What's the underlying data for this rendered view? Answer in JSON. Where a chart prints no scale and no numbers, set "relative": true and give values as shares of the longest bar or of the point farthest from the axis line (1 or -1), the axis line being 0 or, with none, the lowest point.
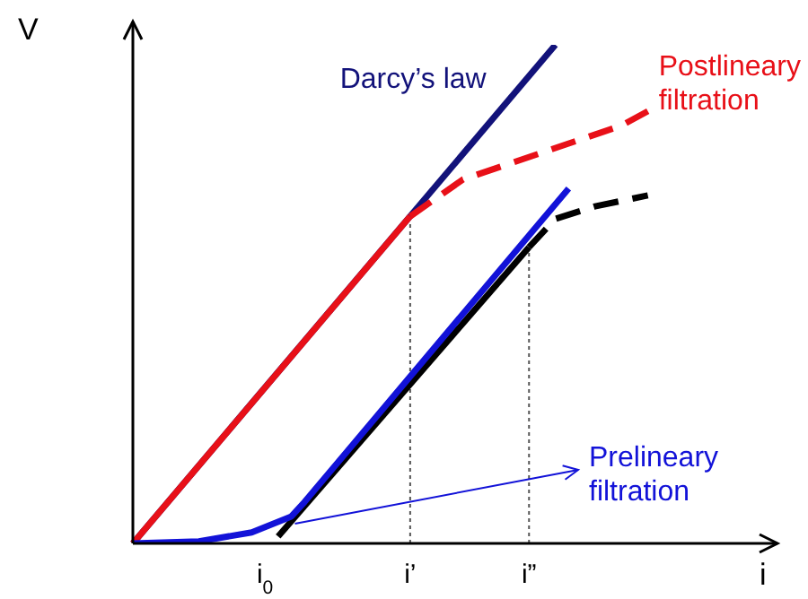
{
  "chart_data": {
    "type": "line",
    "relative": true,
    "xlabel": "i",
    "ylabel": "V",
    "marker": "none",
    "grid": false,
    "categories": [
      null,
      null,
      null,
      null,
      null,
      null,
      null,
      null,
      null,
      null,
      "i$_{0}$",
      null,
      null,
      null,
      null,
      null,
      null,
      null,
      null,
      null,
      null,
      "i’",
      null,
      null,
      null,
      null,
      null,
      null,
      null,
      null,
      "i”",
      null,
      null,
      null,
      null,
      null,
      null,
      null,
      null,
      null,
      null,
      null,
      null,
      null,
      null,
      null,
      null,
      null,
      null
    ],
    "ref_lines": [
      {
        "axis": "x",
        "value": "i’",
        "color": "#555555",
        "line_style": "dotted"
      },
      {
        "axis": "x",
        "value": "i”",
        "color": "#555555",
        "line_style": "dotted"
      }
    ],
    "series": [
      {
        "name": "Darcy’s law",
        "color": "#12127a",
        "line_style": "solid",
        "values": [
          0,
          null,
          null,
          null,
          null,
          null,
          null,
          null,
          null,
          null,
          null,
          null,
          null,
          null,
          null,
          null,
          null,
          null,
          null,
          null,
          null,
          null,
          null,
          null,
          null,
          null,
          null,
          null,
          null,
          null,
          null,
          null,
          1,
          null,
          null,
          null,
          null,
          null,
          null,
          null,
          null,
          null,
          null,
          null,
          null,
          null,
          null,
          null,
          null
        ]
      },
      {
        "color": "#e81018",
        "line_style": "solid",
        "values": [
          0,
          null,
          null,
          null,
          null,
          null,
          null,
          null,
          null,
          null,
          null,
          null,
          null,
          null,
          null,
          null,
          null,
          null,
          null,
          null,
          null,
          0.656,
          null,
          null,
          null,
          null,
          null,
          null,
          null,
          null,
          null,
          null,
          null,
          null,
          null,
          null,
          null,
          null,
          null,
          null,
          null,
          null,
          null,
          null,
          null,
          null,
          null,
          null,
          null
        ]
      },
      {
        "name": "Postlineary filtration",
        "color": "#e81018",
        "line_style": "dashed",
        "values": [
          null,
          null,
          null,
          null,
          null,
          null,
          null,
          null,
          null,
          null,
          null,
          null,
          null,
          null,
          null,
          null,
          null,
          null,
          null,
          null,
          null,
          0.656,
          null,
          null,
          null,
          0.73,
          null,
          null,
          null,
          null,
          null,
          0.784,
          null,
          null,
          null,
          null,
          null,
          0.838,
          null,
          0.867,
          null,
          null,
          null,
          null,
          null,
          null,
          null,
          null,
          null
        ]
      },
      {
        "color": "#000000",
        "line_style": "solid",
        "values": [
          null,
          null,
          null,
          null,
          null,
          null,
          null,
          null,
          null,
          null,
          null,
          0.014,
          null,
          null,
          null,
          null,
          null,
          null,
          null,
          null,
          null,
          null,
          null,
          null,
          null,
          null,
          null,
          null,
          null,
          null,
          0.594,
          null,
          null,
          null,
          null,
          null,
          null,
          null,
          null,
          null,
          null,
          null,
          null,
          null,
          null,
          null,
          null,
          null,
          null
        ]
      },
      {
        "color": "#000000",
        "line_style": "dashed",
        "values": [
          null,
          null,
          null,
          null,
          null,
          null,
          null,
          null,
          null,
          null,
          null,
          null,
          null,
          null,
          null,
          null,
          null,
          null,
          null,
          null,
          null,
          null,
          null,
          null,
          null,
          null,
          null,
          null,
          null,
          null,
          0.594,
          null,
          0.651,
          null,
          null,
          0.676,
          null,
          null,
          null,
          0.698,
          null,
          null,
          null,
          null,
          null,
          null,
          null,
          null,
          null
        ]
      },
      {
        "name": "Prelineary filtration",
        "color": "#1212d8",
        "line_style": "solid",
        "values": [
          0,
          null,
          null,
          null,
          null,
          0.004,
          null,
          null,
          null,
          0.022,
          null,
          null,
          0.054,
          0.083,
          null,
          null,
          null,
          null,
          null,
          null,
          null,
          null,
          null,
          null,
          null,
          null,
          null,
          null,
          null,
          null,
          null,
          null,
          null,
          0.712,
          null,
          null,
          null,
          null,
          null,
          null,
          null,
          null,
          null,
          null,
          null,
          null,
          null,
          null,
          null
        ]
      }
    ]
  }
}
